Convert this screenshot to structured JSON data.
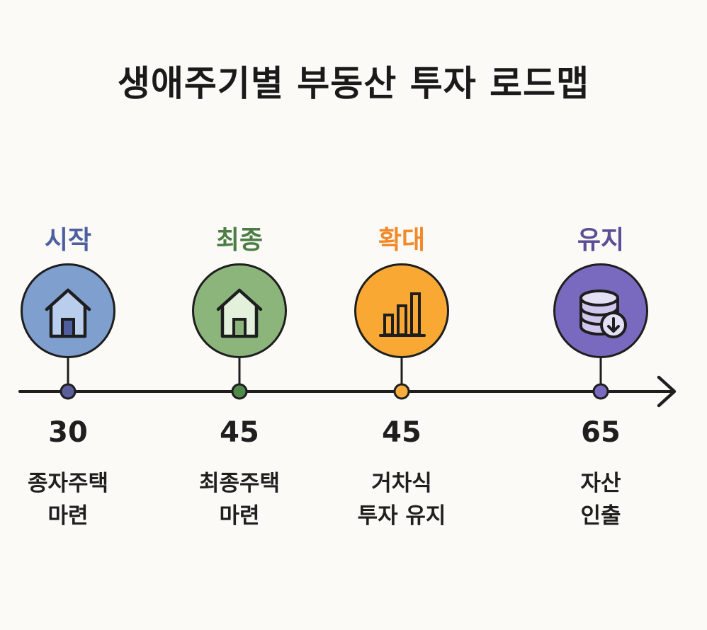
{
  "title": "생애주기별 부동산 투자 로드맵",
  "stages": [
    {
      "label": "시작",
      "age": "30",
      "desc_line1": "종자주택",
      "desc_line2": "마련",
      "color": "#4d5f9e",
      "fill": "#7f9fcf",
      "dot": "#5a5e9a",
      "icon": "house-icon"
    },
    {
      "label": "최종",
      "age": "45",
      "desc_line1": "최종주택",
      "desc_line2": "마련",
      "color": "#4d7d45",
      "fill": "#8cb57c",
      "dot": "#4f8a4b",
      "icon": "house-icon"
    },
    {
      "label": "확대",
      "age": "45",
      "desc_line1": "거차식",
      "desc_line2": "투자 유지",
      "color": "#f08a2a",
      "fill": "#f9a834",
      "dot": "#f6ad3d",
      "icon": "bar-chart-icon"
    },
    {
      "label": "유지",
      "age": "65",
      "desc_line1": "자산",
      "desc_line2": "인출",
      "color": "#5a4f95",
      "fill": "#7a6abf",
      "dot": "#7a6abf",
      "icon": "coin-stack-download-icon"
    }
  ],
  "timeline_color": "#1e1e1e"
}
